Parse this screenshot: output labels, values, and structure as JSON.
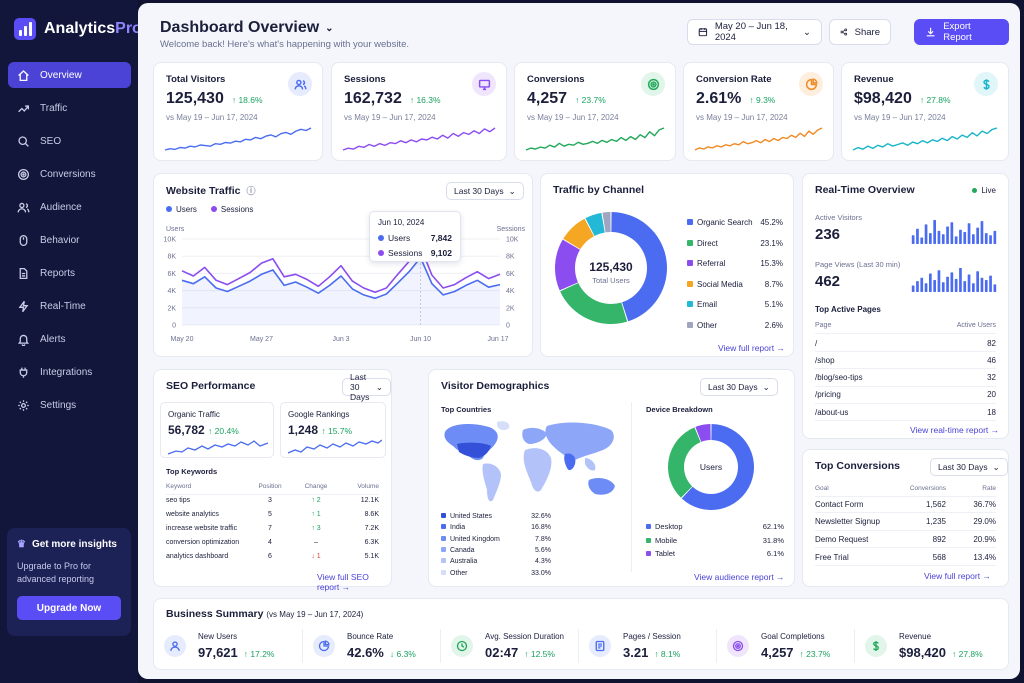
{
  "app": {
    "name_a": "Analytics",
    "name_b": "Pro"
  },
  "sidebar": {
    "items": [
      {
        "label": "Overview",
        "icon": "home-icon"
      },
      {
        "label": "Traffic",
        "icon": "trend-icon"
      },
      {
        "label": "SEO",
        "icon": "search-icon"
      },
      {
        "label": "Conversions",
        "icon": "target-icon"
      },
      {
        "label": "Audience",
        "icon": "users-icon"
      },
      {
        "label": "Behavior",
        "icon": "mouse-icon"
      },
      {
        "label": "Reports",
        "icon": "file-icon"
      },
      {
        "label": "Real-Time",
        "icon": "bolt-icon"
      },
      {
        "label": "Alerts",
        "icon": "bell-icon"
      },
      {
        "label": "Integrations",
        "icon": "plug-icon"
      },
      {
        "label": "Settings",
        "icon": "gear-icon"
      }
    ],
    "promo": {
      "title": "Get more insights",
      "text": "Upgrade to Pro for advanced reporting",
      "button": "Upgrade Now"
    }
  },
  "header": {
    "title": "Dashboard Overview",
    "subtitle": "Welcome back! Here's what's happening with your website.",
    "date_range": "May 20 – Jun 18, 2024",
    "share": "Share",
    "export": "Export Report"
  },
  "kpis": [
    {
      "label": "Total Visitors",
      "value": "125,430",
      "delta": "↑ 18.6%",
      "compare": "vs May 19 – Jun 17, 2024",
      "color": "#4b6cf0",
      "icon": "users-icon",
      "spark": [
        5,
        7,
        6,
        9,
        8,
        11,
        10,
        13,
        12,
        11,
        15,
        14,
        17,
        16,
        19,
        18,
        22,
        21,
        25,
        23,
        27,
        29,
        26,
        31,
        33,
        30,
        35,
        38,
        36,
        40
      ]
    },
    {
      "label": "Sessions",
      "value": "162,732",
      "delta": "↑ 16.3%",
      "compare": "vs May 19 – Jun 17, 2024",
      "color": "#8b4cf0",
      "icon": "monitor-icon",
      "spark": [
        6,
        8,
        7,
        10,
        9,
        12,
        10,
        13,
        11,
        14,
        13,
        16,
        14,
        17,
        15,
        18,
        17,
        20,
        18,
        22,
        19,
        24,
        21,
        25,
        23,
        27,
        24,
        29,
        26,
        30
      ]
    },
    {
      "label": "Conversions",
      "value": "4,257",
      "delta": "↑ 23.7%",
      "compare": "vs May 19 – Jun 17, 2024",
      "color": "#22a85a",
      "icon": "target-icon",
      "spark": [
        5,
        7,
        6,
        8,
        7,
        10,
        8,
        12,
        9,
        11,
        10,
        13,
        11,
        12,
        14,
        12,
        15,
        13,
        16,
        14,
        18,
        15,
        19,
        16,
        21,
        18,
        24,
        20,
        26,
        28
      ]
    },
    {
      "label": "Conversion Rate",
      "value": "2.61%",
      "delta": "↑ 9.3%",
      "compare": "vs May 19 – Jun 17, 2024",
      "color": "#f08a24",
      "icon": "pie-icon",
      "spark": [
        6,
        8,
        7,
        9,
        8,
        10,
        9,
        11,
        10,
        12,
        11,
        14,
        12,
        13,
        15,
        13,
        16,
        14,
        17,
        15,
        18,
        17,
        20,
        18,
        22,
        19,
        24,
        21,
        25,
        27
      ]
    },
    {
      "label": "Revenue",
      "value": "$98,420",
      "delta": "↑ 27.8%",
      "compare": "vs May 19 – Jun 17, 2024",
      "color": "#18b5c9",
      "icon": "dollar-icon",
      "spark": [
        4,
        7,
        5,
        9,
        6,
        10,
        8,
        12,
        9,
        11,
        13,
        10,
        14,
        12,
        16,
        13,
        17,
        15,
        19,
        16,
        21,
        18,
        23,
        20,
        26,
        22,
        28,
        25,
        30,
        32
      ]
    }
  ],
  "traffic": {
    "title": "Website Traffic",
    "range": "Last 30 Days",
    "legend_users": "Users",
    "legend_sessions": "Sessions",
    "y_left": "Users",
    "y_right": "Sessions",
    "tooltip": {
      "date": "Jun 10, 2024",
      "users_label": "Users",
      "users": "7,842",
      "sessions_label": "Sessions",
      "sessions": "9,102"
    }
  },
  "channels": {
    "title": "Traffic by Channel",
    "center_value": "125,430",
    "center_label": "Total Users",
    "items": [
      {
        "label": "Organic Search",
        "value": "45.2%",
        "pct": 45.2,
        "color": "#4b6cf0"
      },
      {
        "label": "Direct",
        "value": "23.1%",
        "pct": 23.1,
        "color": "#34b56a"
      },
      {
        "label": "Referral",
        "value": "15.3%",
        "pct": 15.3,
        "color": "#8b4cf0"
      },
      {
        "label": "Social Media",
        "value": "8.7%",
        "pct": 8.7,
        "color": "#f5a623"
      },
      {
        "label": "Email",
        "value": "5.1%",
        "pct": 5.1,
        "color": "#23b8d6"
      },
      {
        "label": "Other",
        "value": "2.6%",
        "pct": 2.6,
        "color": "#a0a6bf"
      }
    ],
    "link": "View full report →"
  },
  "realtime": {
    "title": "Real-Time Overview",
    "live": "Live",
    "visitors_label": "Active Visitors",
    "visitors": "236",
    "views_label": "Page Views (Last 30 min)",
    "views": "462",
    "pages_title": "Top Active Pages",
    "col_page": "Page",
    "col_users": "Active Users",
    "pages": [
      {
        "page": "/",
        "users": "82"
      },
      {
        "page": "/shop",
        "users": "46"
      },
      {
        "page": "/blog/seo-tips",
        "users": "32"
      },
      {
        "page": "/pricing",
        "users": "20"
      },
      {
        "page": "/about-us",
        "users": "18"
      }
    ],
    "link": "View real-time report →",
    "bars1": [
      8,
      14,
      6,
      18,
      10,
      22,
      12,
      9,
      16,
      20,
      7,
      13,
      11,
      19,
      9,
      15,
      21,
      10,
      8,
      12
    ],
    "bars2": [
      6,
      10,
      13,
      8,
      17,
      11,
      20,
      9,
      14,
      18,
      12,
      22,
      10,
      16,
      8,
      19,
      13,
      11,
      15,
      7
    ]
  },
  "seo": {
    "title": "SEO Performance",
    "range": "Last 30 Days",
    "organic_label": "Organic Traffic",
    "organic_value": "56,782",
    "organic_delta": "↑ 20.4%",
    "rank_label": "Google Rankings",
    "rank_value": "1,248",
    "rank_delta": "↑ 15.7%",
    "keywords_title": "Top Keywords",
    "cols": {
      "keyword": "Keyword",
      "position": "Position",
      "change": "Change",
      "volume": "Volume"
    },
    "keywords": [
      {
        "k": "seo tips",
        "p": "3",
        "c": "↑ 2",
        "v": "12.1K",
        "t": "up"
      },
      {
        "k": "website analytics",
        "p": "5",
        "c": "↑ 1",
        "v": "8.6K",
        "t": "up"
      },
      {
        "k": "increase website traffic",
        "p": "7",
        "c": "↑ 3",
        "v": "7.2K",
        "t": "up"
      },
      {
        "k": "conversion optimization",
        "p": "4",
        "c": "–",
        "v": "6.3K",
        "t": "flat"
      },
      {
        "k": "analytics dashboard",
        "p": "6",
        "c": "↓ 1",
        "v": "5.1K",
        "t": "down"
      }
    ],
    "link": "View full SEO report"
  },
  "demographics": {
    "title": "Visitor Demographics",
    "range": "Last 30 Days",
    "countries_title": "Top Countries",
    "countries": [
      {
        "name": "United States",
        "value": "32.6%",
        "color": "#3550d8"
      },
      {
        "name": "India",
        "value": "16.8%",
        "color": "#4b6cf0"
      },
      {
        "name": "United Kingdom",
        "value": "7.8%",
        "color": "#6e8cf5"
      },
      {
        "name": "Canada",
        "value": "5.6%",
        "color": "#8ea6f7"
      },
      {
        "name": "Australia",
        "value": "4.3%",
        "color": "#b3c3fa"
      },
      {
        "name": "Other",
        "value": "33.0%",
        "color": "#d6def9"
      }
    ],
    "device_title": "Device Breakdown",
    "device_center": "Users",
    "devices": [
      {
        "name": "Desktop",
        "value": "62.1%",
        "pct": 62.1,
        "color": "#4b6cf0"
      },
      {
        "name": "Mobile",
        "value": "31.8%",
        "pct": 31.8,
        "color": "#34b56a"
      },
      {
        "name": "Tablet",
        "value": "6.1%",
        "pct": 6.1,
        "color": "#8b4cf0"
      }
    ],
    "link": "View audience report →"
  },
  "conversions": {
    "title": "Top Conversions",
    "range": "Last 30 Days",
    "cols": {
      "goal": "Goal",
      "conv": "Conversions",
      "rate": "Rate"
    },
    "rows": [
      {
        "goal": "Contact Form",
        "conv": "1,562",
        "rate": "36.7%"
      },
      {
        "goal": "Newsletter Signup",
        "conv": "1,235",
        "rate": "29.0%"
      },
      {
        "goal": "Demo Request",
        "conv": "892",
        "rate": "20.9%"
      },
      {
        "goal": "Free Trial",
        "conv": "568",
        "rate": "13.4%"
      }
    ],
    "link": "View full report →"
  },
  "summary": {
    "title": "Business Summary",
    "period": "(vs May 19 – Jun 17, 2024)",
    "items": [
      {
        "label": "New Users",
        "value": "97,621",
        "delta": "↑ 17.2%",
        "color": "#4b6cf0",
        "bg": "#e6ebfd",
        "icon": "user-icon"
      },
      {
        "label": "Bounce Rate",
        "value": "42.6%",
        "delta": "↓ 6.3%",
        "color": "#4b6cf0",
        "bg": "#e6ebfd",
        "icon": "pie-icon"
      },
      {
        "label": "Avg. Session Duration",
        "value": "02:47",
        "delta": "↑ 12.5%",
        "color": "#22a85a",
        "bg": "#e2f5ea",
        "icon": "clock-icon"
      },
      {
        "label": "Pages / Session",
        "value": "3.21",
        "delta": "↑ 8.1%",
        "color": "#4b6cf0",
        "bg": "#e6ebfd",
        "icon": "page-icon"
      },
      {
        "label": "Goal Completions",
        "value": "4,257",
        "delta": "↑ 23.7%",
        "color": "#8b4cf0",
        "bg": "#efe6fd",
        "icon": "target-icon"
      },
      {
        "label": "Revenue",
        "value": "$98,420",
        "delta": "↑ 27.8%",
        "color": "#22a85a",
        "bg": "#e2f5ea",
        "icon": "dollar-icon"
      }
    ]
  },
  "chart_data": {
    "type": "line",
    "x": [
      "May 20",
      "May 21",
      "May 22",
      "May 23",
      "May 24",
      "May 25",
      "May 26",
      "May 27",
      "May 28",
      "May 29",
      "May 30",
      "May 31",
      "Jun 1",
      "Jun 2",
      "Jun 3",
      "Jun 4",
      "Jun 5",
      "Jun 6",
      "Jun 7",
      "Jun 8",
      "Jun 9",
      "Jun 10",
      "Jun 11",
      "Jun 12",
      "Jun 13",
      "Jun 14",
      "Jun 15",
      "Jun 16",
      "Jun 17"
    ],
    "x_ticks": [
      "May 20",
      "May 27",
      "Jun 3",
      "Jun 10",
      "Jun 17"
    ],
    "y_ticks_left": [
      "0",
      "2K",
      "4K",
      "6K",
      "8K",
      "10K"
    ],
    "y_ticks_right": [
      "0",
      "2K",
      "4K",
      "6K",
      "8K",
      "10K"
    ],
    "ylim": [
      0,
      10000
    ],
    "series": [
      {
        "name": "Users",
        "color": "#4b6cf0",
        "values": [
          5200,
          4800,
          5600,
          4300,
          3900,
          4500,
          5100,
          5900,
          6400,
          4600,
          5000,
          4400,
          3700,
          4600,
          5700,
          4200,
          3500,
          3100,
          3600,
          4900,
          6200,
          7842,
          4800,
          3500,
          3900,
          4600,
          5200,
          4400,
          4700
        ]
      },
      {
        "name": "Sessions",
        "color": "#8b4cf0",
        "values": [
          6300,
          5700,
          6700,
          5200,
          4700,
          5400,
          6100,
          7200,
          7700,
          5600,
          5900,
          5300,
          4500,
          5600,
          6900,
          5100,
          4300,
          3800,
          4300,
          5900,
          7400,
          9102,
          5800,
          4300,
          4700,
          5500,
          6200,
          5400,
          5900
        ]
      }
    ]
  }
}
